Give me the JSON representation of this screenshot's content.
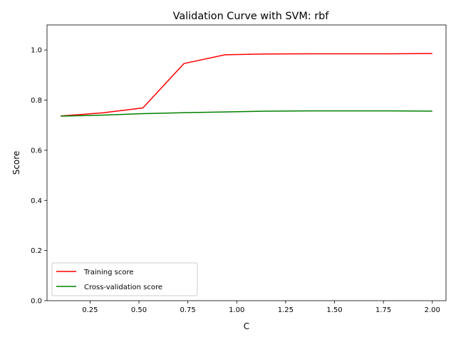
{
  "chart_data": {
    "type": "line",
    "title": "Validation Curve with SVM: rbf",
    "xlabel": "C",
    "ylabel": "Score",
    "xlim": [
      0.03,
      2.07
    ],
    "ylim": [
      0.0,
      1.1
    ],
    "x": [
      0.1,
      0.31,
      0.52,
      0.73,
      0.94,
      1.15,
      1.37,
      1.58,
      1.79,
      2.0
    ],
    "series": [
      {
        "name": "Training score",
        "color": "#ff0000",
        "values": [
          0.737,
          0.749,
          0.769,
          0.946,
          0.981,
          0.984,
          0.985,
          0.985,
          0.985,
          0.986
        ]
      },
      {
        "name": "Cross-validation score",
        "color": "#008000",
        "values": [
          0.736,
          0.74,
          0.746,
          0.75,
          0.753,
          0.756,
          0.757,
          0.757,
          0.757,
          0.756
        ]
      }
    ],
    "x_ticks": [
      {
        "value": 0.25,
        "label": "0.25"
      },
      {
        "value": 0.5,
        "label": "0.50"
      },
      {
        "value": 0.75,
        "label": "0.75"
      },
      {
        "value": 1.0,
        "label": "1.00"
      },
      {
        "value": 1.25,
        "label": "1.25"
      },
      {
        "value": 1.5,
        "label": "1.50"
      },
      {
        "value": 1.75,
        "label": "1.75"
      },
      {
        "value": 2.0,
        "label": "2.00"
      }
    ],
    "y_ticks": [
      {
        "value": 0.0,
        "label": "0.0"
      },
      {
        "value": 0.2,
        "label": "0.2"
      },
      {
        "value": 0.4,
        "label": "0.4"
      },
      {
        "value": 0.6,
        "label": "0.6"
      },
      {
        "value": 0.8,
        "label": "0.8"
      },
      {
        "value": 1.0,
        "label": "1.0"
      }
    ],
    "grid": false,
    "legend_position": "lower-left"
  }
}
